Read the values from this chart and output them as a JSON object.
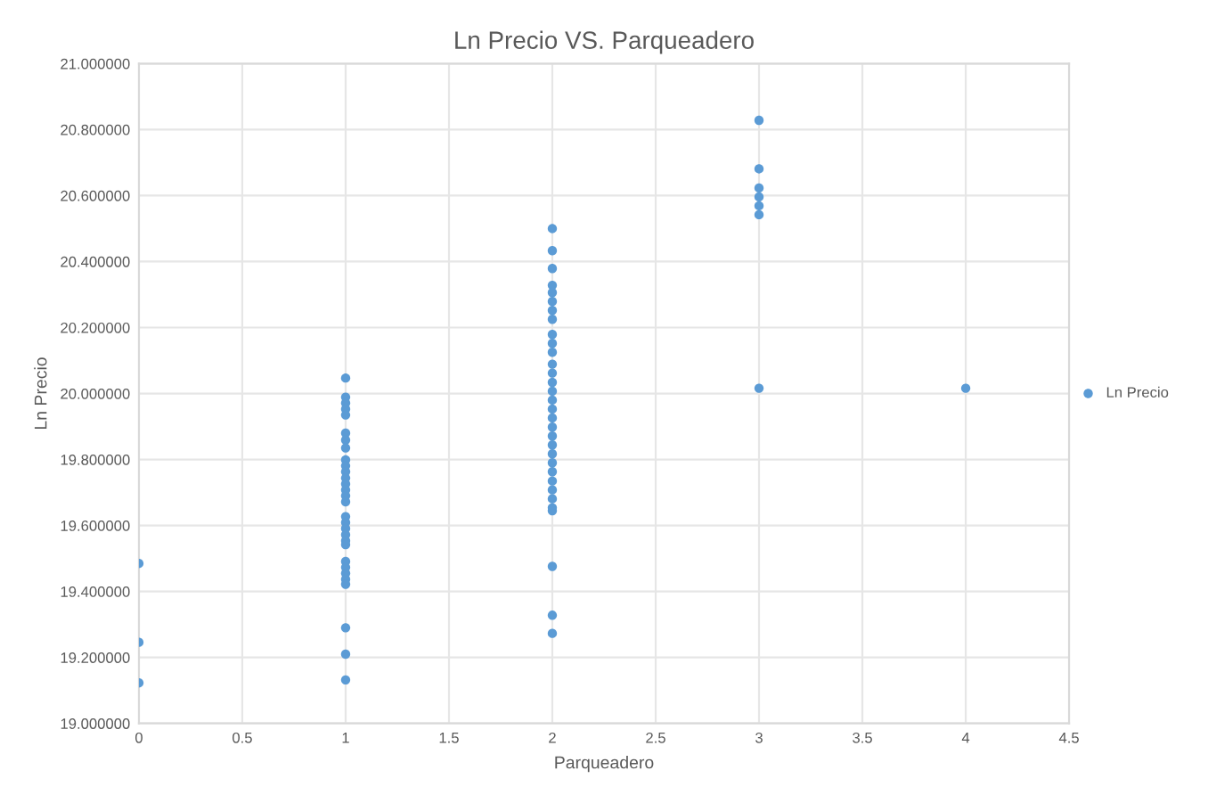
{
  "chart_data": {
    "type": "scatter",
    "title": "Ln Precio VS. Parqueadero",
    "xlabel": "Parqueadero",
    "ylabel": "Ln Precio",
    "series": [
      {
        "name": "Ln Precio",
        "color": "#5b9bd5",
        "x": [
          0,
          0,
          0,
          1,
          1,
          1,
          1,
          1,
          1,
          1,
          1,
          1,
          1,
          1,
          1,
          1,
          1,
          1,
          1,
          1,
          1,
          1,
          1,
          1,
          1,
          1,
          1,
          1,
          1,
          1,
          1,
          1,
          1,
          2,
          2,
          2,
          2,
          2,
          2,
          2,
          2,
          2,
          2,
          2,
          2,
          2,
          2,
          2,
          2,
          2,
          2,
          2,
          2,
          2,
          2,
          2,
          2,
          2,
          2,
          2,
          2,
          2,
          2,
          2,
          2,
          3,
          3,
          3,
          3,
          3,
          3,
          3,
          4
        ],
        "values": [
          19.485,
          19.246,
          19.123,
          20.047,
          19.989,
          19.971,
          19.953,
          19.935,
          19.88,
          19.859,
          19.835,
          19.799,
          19.781,
          19.763,
          19.744,
          19.726,
          19.708,
          19.69,
          19.672,
          19.627,
          19.609,
          19.591,
          19.572,
          19.554,
          19.542,
          19.491,
          19.473,
          19.455,
          19.437,
          19.422,
          19.29,
          19.21,
          19.132,
          20.5,
          20.433,
          20.379,
          20.328,
          20.306,
          20.279,
          20.252,
          20.225,
          20.179,
          20.152,
          20.125,
          20.089,
          20.062,
          20.034,
          20.007,
          19.98,
          19.953,
          19.926,
          19.898,
          19.871,
          19.844,
          19.817,
          19.79,
          19.763,
          19.735,
          19.708,
          19.681,
          19.654,
          19.645,
          19.476,
          19.328,
          19.273,
          20.828,
          20.681,
          20.623,
          20.596,
          20.569,
          20.542,
          20.016,
          20.016
        ]
      }
    ],
    "xlim": [
      0,
      4.5
    ],
    "xticks": [
      0,
      0.5,
      1,
      1.5,
      2,
      2.5,
      3,
      3.5,
      4,
      4.5
    ],
    "ylim": [
      19,
      21
    ],
    "yticks": [
      {
        "value": 19,
        "label": "19.000000"
      },
      {
        "value": 19.2,
        "label": "19.200000"
      },
      {
        "value": 19.4,
        "label": "19.400000"
      },
      {
        "value": 19.6,
        "label": "19.600000"
      },
      {
        "value": 19.8,
        "label": "19.800000"
      },
      {
        "value": 20,
        "label": "20.000000"
      },
      {
        "value": 20.2,
        "label": "20.200000"
      },
      {
        "value": 20.4,
        "label": "20.400000"
      },
      {
        "value": 20.6,
        "label": "20.600000"
      },
      {
        "value": 20.8,
        "label": "20.800000"
      },
      {
        "value": 21,
        "label": "21.000000"
      }
    ],
    "grid": true,
    "legend": "right",
    "marker": "circle"
  }
}
